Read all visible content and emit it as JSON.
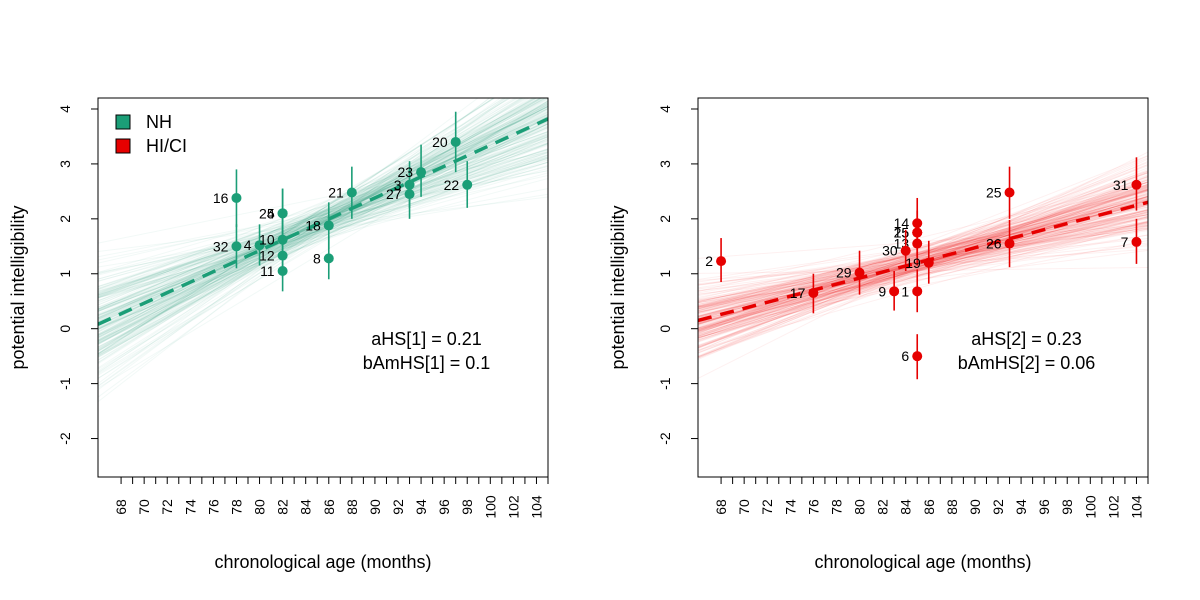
{
  "chart_data": [
    {
      "type": "scatter",
      "panel": "left",
      "xlabel": "chronological age (months)",
      "ylabel": "potential intelligibility",
      "xlim": [
        66,
        105
      ],
      "ylim": [
        -2.7,
        4.2
      ],
      "x_ticks": [
        "68",
        "70",
        "72",
        "74",
        "76",
        "78",
        "80",
        "82",
        "84",
        "86",
        "88",
        "90",
        "92",
        "94",
        "96",
        "98",
        "100",
        "102",
        "104"
      ],
      "y_ticks": [
        "-2",
        "-1",
        "0",
        "1",
        "2",
        "3",
        "4"
      ],
      "color": "#1b9e77",
      "legend": [
        {
          "label": "NH",
          "color": "#1b9e77"
        },
        {
          "label": "HI/CI",
          "color": "#e60000"
        }
      ],
      "legend_position": "top-left",
      "annotations": [
        "aHS[1] = 0.21",
        "bAmHS[1] = 0.1"
      ],
      "regression": {
        "x0": 66,
        "y0": 0.08,
        "x1": 105,
        "y1": 3.82
      },
      "points": [
        {
          "label": "16",
          "x": 78,
          "y": 2.38,
          "lo": 1.85,
          "hi": 2.9
        },
        {
          "label": "32",
          "x": 78,
          "y": 1.5,
          "lo": 1.1,
          "hi": 1.9
        },
        {
          "label": "4",
          "x": 80,
          "y": 1.52,
          "lo": 1.15,
          "hi": 1.9
        },
        {
          "label": "10",
          "x": 82,
          "y": 1.62,
          "lo": 1.25,
          "hi": 2.0
        },
        {
          "label": "12",
          "x": 82,
          "y": 1.33,
          "lo": 0.95,
          "hi": 1.7
        },
        {
          "label": "11",
          "x": 82,
          "y": 1.05,
          "lo": 0.68,
          "hi": 1.45
        },
        {
          "label": "5",
          "x": 82,
          "y": 2.1,
          "lo": 1.65,
          "hi": 2.55
        },
        {
          "label": "24",
          "x": 82,
          "y": 2.1,
          "lo": 1.65,
          "hi": 2.55
        },
        {
          "label": "18",
          "x": 86,
          "y": 1.88,
          "lo": 1.45,
          "hi": 2.3
        },
        {
          "label": "8",
          "x": 86,
          "y": 1.28,
          "lo": 0.9,
          "hi": 1.68
        },
        {
          "label": "21",
          "x": 88,
          "y": 2.48,
          "lo": 2.0,
          "hi": 2.95
        },
        {
          "label": "3",
          "x": 93,
          "y": 2.62,
          "lo": 2.2,
          "hi": 3.05
        },
        {
          "label": "27",
          "x": 93,
          "y": 2.45,
          "lo": 2.0,
          "hi": 2.9
        },
        {
          "label": "23",
          "x": 94,
          "y": 2.85,
          "lo": 2.4,
          "hi": 3.35
        },
        {
          "label": "20",
          "x": 97,
          "y": 3.4,
          "lo": 2.85,
          "hi": 3.95
        },
        {
          "label": "22",
          "x": 98,
          "y": 2.62,
          "lo": 2.2,
          "hi": 3.05
        }
      ]
    },
    {
      "type": "scatter",
      "panel": "right",
      "xlabel": "chronological age (months)",
      "ylabel": "potential intelligibility",
      "xlim": [
        66,
        105
      ],
      "ylim": [
        -2.7,
        4.2
      ],
      "x_ticks": [
        "68",
        "70",
        "72",
        "74",
        "76",
        "78",
        "80",
        "82",
        "84",
        "86",
        "88",
        "90",
        "92",
        "94",
        "96",
        "98",
        "100",
        "102",
        "104"
      ],
      "y_ticks": [
        "-2",
        "-1",
        "0",
        "1",
        "2",
        "3",
        "4"
      ],
      "color": "#e60000",
      "annotations": [
        "aHS[2] = 0.23",
        "bAmHS[2] = 0.06"
      ],
      "regression": {
        "x0": 66,
        "y0": 0.15,
        "x1": 105,
        "y1": 2.3
      },
      "points": [
        {
          "label": "2",
          "x": 68,
          "y": 1.23,
          "lo": 0.85,
          "hi": 1.65
        },
        {
          "label": "17",
          "x": 76,
          "y": 0.65,
          "lo": 0.28,
          "hi": 1.0
        },
        {
          "label": "29",
          "x": 80,
          "y": 1.02,
          "lo": 0.62,
          "hi": 1.42
        },
        {
          "label": "9",
          "x": 83,
          "y": 0.68,
          "lo": 0.33,
          "hi": 1.05
        },
        {
          "label": "1",
          "x": 85,
          "y": 0.68,
          "lo": 0.3,
          "hi": 1.08
        },
        {
          "label": "6",
          "x": 85,
          "y": -0.5,
          "lo": -0.92,
          "hi": -0.1
        },
        {
          "label": "14",
          "x": 85,
          "y": 1.92,
          "lo": 1.5,
          "hi": 2.38
        },
        {
          "label": "25",
          "x": 85,
          "y": 1.75,
          "lo": 1.3,
          "hi": 2.15
        },
        {
          "label": "15",
          "x": 85,
          "y": 1.75,
          "lo": 1.3,
          "hi": 2.15
        },
        {
          "label": "13",
          "x": 85,
          "y": 1.55,
          "lo": 1.15,
          "hi": 1.95
        },
        {
          "label": "30",
          "x": 84,
          "y": 1.42,
          "lo": 1.05,
          "hi": 1.8
        },
        {
          "label": "19",
          "x": 86,
          "y": 1.2,
          "lo": 0.82,
          "hi": 1.6
        },
        {
          "label": "25",
          "x": 93,
          "y": 2.48,
          "lo": 2.0,
          "hi": 2.95
        },
        {
          "label": "26",
          "x": 93,
          "y": 1.55,
          "lo": 1.12,
          "hi": 1.98
        },
        {
          "label": "31",
          "x": 104,
          "y": 2.62,
          "lo": 2.15,
          "hi": 3.12
        },
        {
          "label": "7",
          "x": 104,
          "y": 1.58,
          "lo": 1.18,
          "hi": 2.0
        }
      ]
    }
  ]
}
